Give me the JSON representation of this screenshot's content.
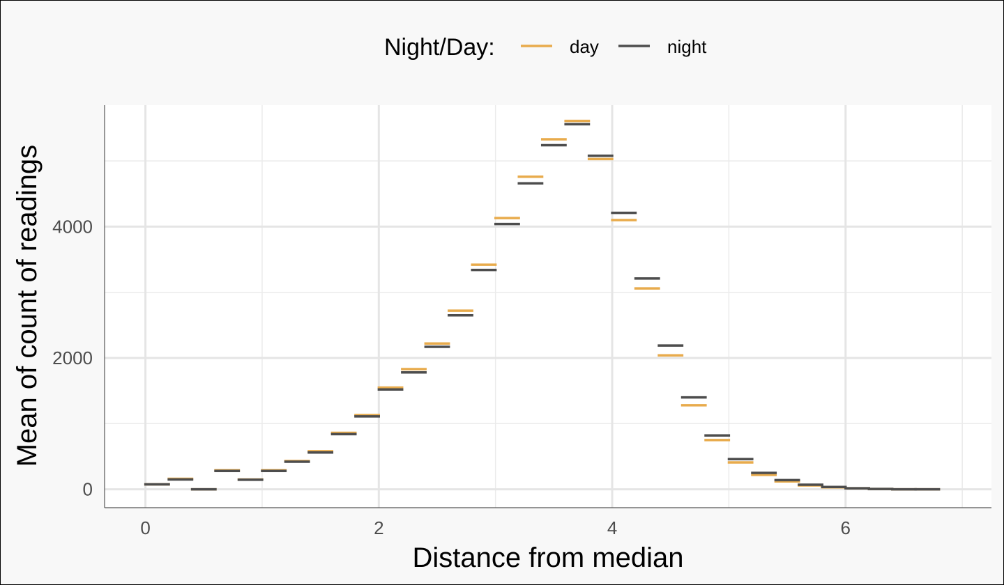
{
  "chart_data": {
    "type": "line",
    "title": "",
    "xlabel": "Distance from median",
    "ylabel": "Mean of count of readings",
    "xlim": [
      -0.35,
      7.25
    ],
    "ylim": [
      -280,
      5850
    ],
    "x_ticks": [
      0,
      2,
      4,
      6
    ],
    "y_ticks": [
      0,
      2000,
      4000
    ],
    "grid": true,
    "legend": {
      "title": "Night/Day:",
      "position": "top"
    },
    "series": [
      {
        "name": "day",
        "color": "#E8AB4C",
        "x": [
          0.1,
          0.3,
          0.5,
          0.7,
          0.9,
          1.1,
          1.3,
          1.5,
          1.7,
          1.9,
          2.1,
          2.3,
          2.5,
          2.7,
          2.9,
          3.1,
          3.3,
          3.5,
          3.7,
          3.9,
          4.1,
          4.3,
          4.5,
          4.7,
          4.9,
          5.1,
          5.3,
          5.5,
          5.7,
          5.9,
          6.1,
          6.3,
          6.5,
          6.7
        ],
        "values": [
          75,
          160,
          0,
          290,
          150,
          290,
          430,
          580,
          860,
          1130,
          1550,
          1830,
          2220,
          2720,
          3420,
          4130,
          4760,
          5330,
          5610,
          5030,
          4100,
          3060,
          2040,
          1280,
          750,
          410,
          220,
          120,
          60,
          30,
          15,
          5,
          0,
          0
        ]
      },
      {
        "name": "night",
        "color": "#4D4D4D",
        "x": [
          0.1,
          0.3,
          0.5,
          0.7,
          0.9,
          1.1,
          1.3,
          1.5,
          1.7,
          1.9,
          2.1,
          2.3,
          2.5,
          2.7,
          2.9,
          3.1,
          3.3,
          3.5,
          3.7,
          3.9,
          4.1,
          4.3,
          4.5,
          4.7,
          4.9,
          5.1,
          5.3,
          5.5,
          5.7,
          5.9,
          6.1,
          6.3,
          6.5,
          6.7
        ],
        "values": [
          75,
          150,
          0,
          280,
          145,
          280,
          420,
          560,
          840,
          1110,
          1520,
          1780,
          2170,
          2650,
          3340,
          4040,
          4660,
          5240,
          5560,
          5080,
          4210,
          3210,
          2190,
          1400,
          820,
          460,
          250,
          140,
          70,
          35,
          15,
          5,
          0,
          0
        ]
      }
    ]
  }
}
